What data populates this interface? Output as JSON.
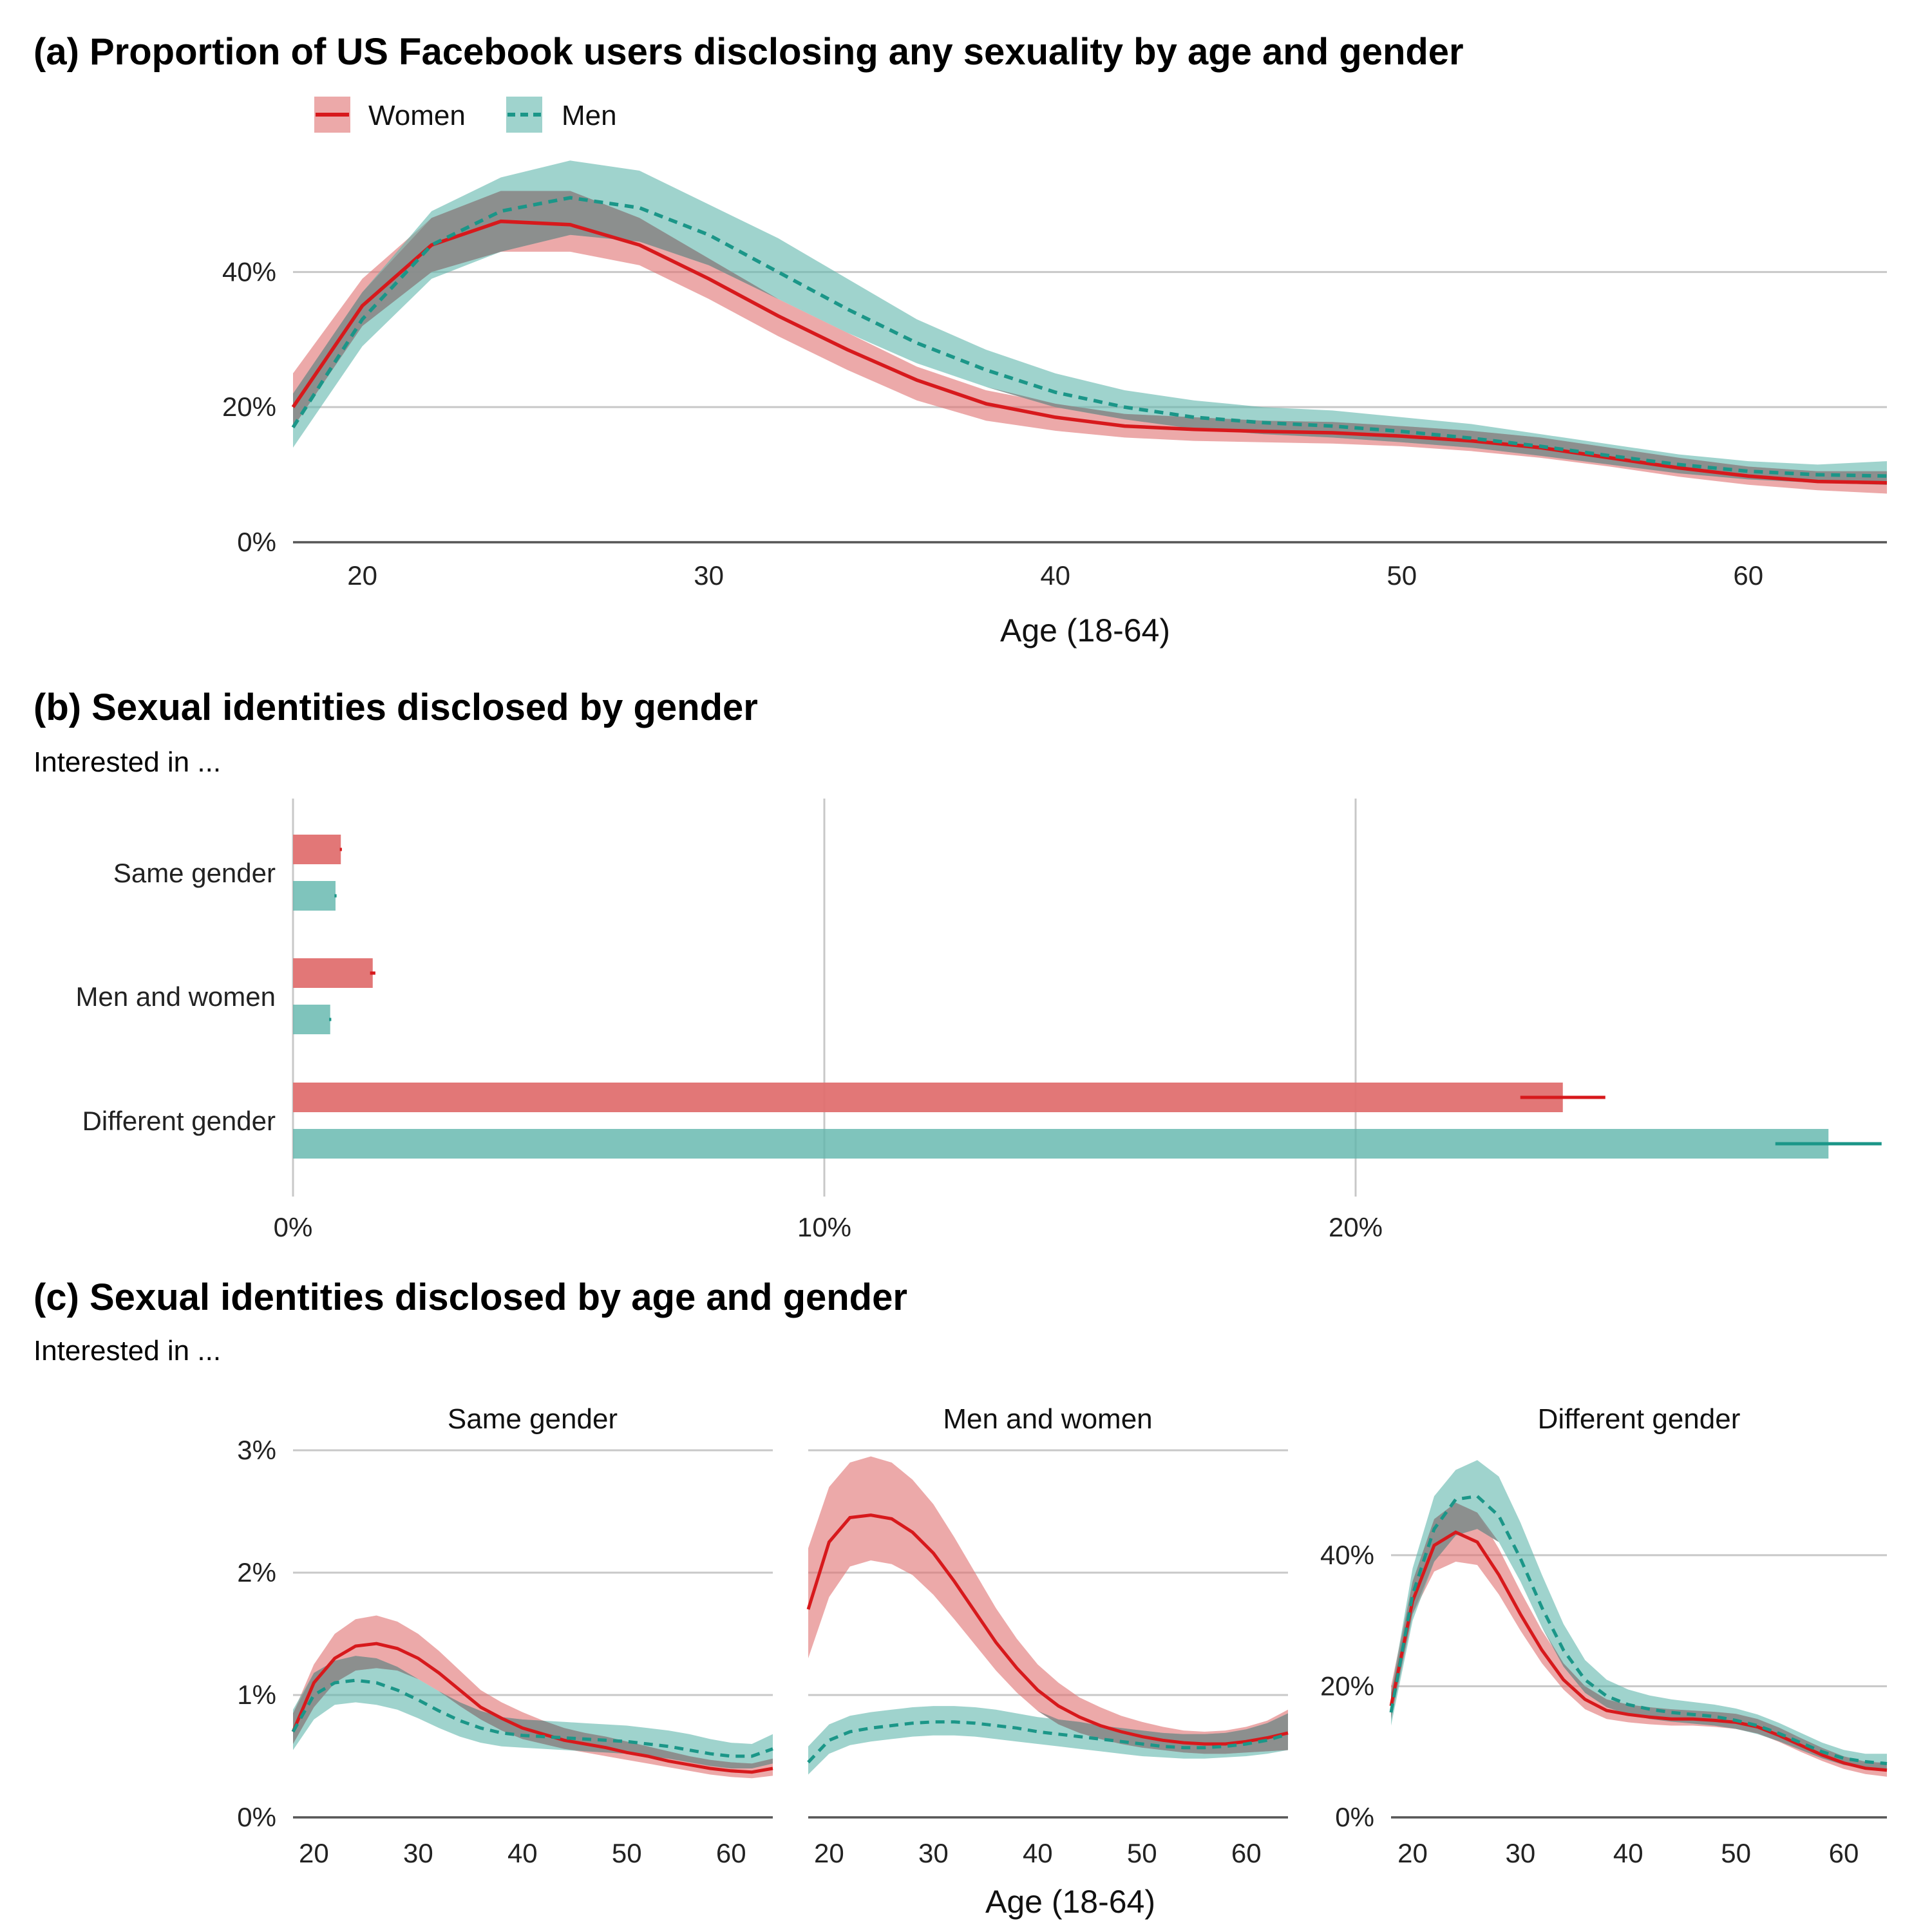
{
  "colors": {
    "women": "#d7191c",
    "men": "#1b9688",
    "women_band": "#e07070",
    "men_band": "#5fb5ab",
    "overlap": "#8a8a8a",
    "grid": "#c8c8c8"
  },
  "legend": {
    "women": "Women",
    "men": "Men"
  },
  "chart_data": [
    {
      "panel": "a",
      "type": "line",
      "title": "(a) Proportion of US Facebook users disclosing any sexuality by age and gender",
      "xlabel": "Age (18-64)",
      "ylabel": "",
      "xlim": [
        18,
        64
      ],
      "ylim": [
        0,
        0.55
      ],
      "xticks": [
        20,
        30,
        40,
        50,
        60
      ],
      "xtick_labels": [
        "20",
        "30",
        "40",
        "50",
        "60"
      ],
      "yticks": [
        0,
        0.2,
        0.4
      ],
      "ytick_labels": [
        "0%",
        "20%",
        "40%"
      ],
      "x": [
        18,
        20,
        22,
        24,
        26,
        28,
        30,
        32,
        34,
        36,
        38,
        40,
        42,
        44,
        46,
        48,
        50,
        52,
        54,
        56,
        58,
        60,
        62,
        64
      ],
      "series": [
        {
          "name": "Women",
          "values": [
            0.2,
            0.35,
            0.44,
            0.475,
            0.47,
            0.44,
            0.39,
            0.335,
            0.285,
            0.24,
            0.205,
            0.185,
            0.172,
            0.167,
            0.164,
            0.162,
            0.157,
            0.15,
            0.14,
            0.125,
            0.11,
            0.098,
            0.09,
            0.088
          ],
          "lower": [
            0.17,
            0.32,
            0.4,
            0.43,
            0.43,
            0.41,
            0.36,
            0.305,
            0.255,
            0.21,
            0.18,
            0.165,
            0.155,
            0.15,
            0.148,
            0.146,
            0.142,
            0.135,
            0.125,
            0.112,
            0.097,
            0.085,
            0.077,
            0.072
          ],
          "upper": [
            0.25,
            0.39,
            0.48,
            0.52,
            0.52,
            0.48,
            0.42,
            0.36,
            0.31,
            0.26,
            0.225,
            0.205,
            0.19,
            0.185,
            0.18,
            0.178,
            0.172,
            0.165,
            0.155,
            0.14,
            0.125,
            0.112,
            0.105,
            0.105
          ]
        },
        {
          "name": "Men",
          "values": [
            0.17,
            0.33,
            0.44,
            0.49,
            0.51,
            0.495,
            0.455,
            0.4,
            0.345,
            0.295,
            0.255,
            0.222,
            0.2,
            0.185,
            0.177,
            0.172,
            0.164,
            0.154,
            0.142,
            0.128,
            0.115,
            0.105,
            0.1,
            0.098
          ],
          "lower": [
            0.14,
            0.29,
            0.39,
            0.43,
            0.455,
            0.445,
            0.41,
            0.36,
            0.31,
            0.265,
            0.23,
            0.2,
            0.182,
            0.168,
            0.16,
            0.155,
            0.148,
            0.14,
            0.128,
            0.115,
            0.102,
            0.093,
            0.088,
            0.085
          ],
          "upper": [
            0.22,
            0.37,
            0.49,
            0.54,
            0.565,
            0.55,
            0.5,
            0.45,
            0.39,
            0.33,
            0.285,
            0.25,
            0.225,
            0.21,
            0.2,
            0.195,
            0.185,
            0.175,
            0.16,
            0.145,
            0.13,
            0.12,
            0.115,
            0.12
          ]
        }
      ]
    },
    {
      "panel": "b",
      "type": "bar",
      "orientation": "horizontal",
      "title": "(b) Sexual identities disclosed by gender",
      "subtitle": "Interested in ...",
      "categories": [
        "Same gender",
        "Men and women",
        "Different gender"
      ],
      "xlim": [
        0,
        0.3
      ],
      "xticks": [
        0,
        0.1,
        0.2
      ],
      "xtick_labels": [
        "0%",
        "10%",
        "20%"
      ],
      "series": [
        {
          "name": "Women",
          "values": [
            0.009,
            0.015,
            0.239
          ],
          "err_low": [
            0.0088,
            0.0145,
            0.231
          ],
          "err_high": [
            0.0092,
            0.0155,
            0.247
          ]
        },
        {
          "name": "Men",
          "values": [
            0.008,
            0.007,
            0.289
          ],
          "err_low": [
            0.0078,
            0.0068,
            0.279
          ],
          "err_high": [
            0.0082,
            0.0072,
            0.299
          ]
        }
      ]
    },
    {
      "panel": "c",
      "type": "line",
      "title": "(c) Sexual identities disclosed by age and gender",
      "subtitle": "Interested in ...",
      "xlabel": "Age (18-64)",
      "xlim": [
        18,
        64
      ],
      "xticks": [
        20,
        30,
        40,
        50,
        60
      ],
      "xtick_labels": [
        "20",
        "30",
        "40",
        "50",
        "60"
      ],
      "x": [
        18,
        20,
        22,
        24,
        26,
        28,
        30,
        32,
        34,
        36,
        38,
        40,
        42,
        44,
        46,
        48,
        50,
        52,
        54,
        56,
        58,
        60,
        62,
        64
      ],
      "facets": [
        {
          "label": "Same gender",
          "ylim": [
            0,
            0.03
          ],
          "yticks": [
            0,
            0.01,
            0.02,
            0.03
          ],
          "ytick_labels": [
            "0%",
            "1%",
            "2%",
            "3%"
          ],
          "series": [
            {
              "name": "Women",
              "values": [
                0.007,
                0.011,
                0.013,
                0.014,
                0.0142,
                0.0138,
                0.013,
                0.0118,
                0.0104,
                0.009,
                0.0081,
                0.0073,
                0.0068,
                0.0063,
                0.006,
                0.0057,
                0.0053,
                0.005,
                0.0046,
                0.0043,
                0.004,
                0.0038,
                0.0037,
                0.004
              ],
              "lower": [
                0.006,
                0.009,
                0.011,
                0.012,
                0.0122,
                0.012,
                0.0113,
                0.0103,
                0.0091,
                0.008,
                0.0071,
                0.0064,
                0.006,
                0.0056,
                0.0053,
                0.005,
                0.0047,
                0.0044,
                0.0041,
                0.0038,
                0.0035,
                0.0033,
                0.0032,
                0.0034
              ],
              "upper": [
                0.0085,
                0.0125,
                0.015,
                0.0162,
                0.0165,
                0.016,
                0.015,
                0.0136,
                0.012,
                0.0104,
                0.0094,
                0.0086,
                0.0079,
                0.0073,
                0.0069,
                0.0066,
                0.0062,
                0.0058,
                0.0054,
                0.005,
                0.0047,
                0.0045,
                0.0044,
                0.0048
              ]
            },
            {
              "name": "Men",
              "values": [
                0.007,
                0.01,
                0.011,
                0.0112,
                0.011,
                0.0104,
                0.0096,
                0.0087,
                0.0079,
                0.0073,
                0.0069,
                0.0067,
                0.0066,
                0.0065,
                0.0064,
                0.0063,
                0.0062,
                0.006,
                0.0058,
                0.0055,
                0.0052,
                0.005,
                0.005,
                0.0056
              ],
              "lower": [
                0.0055,
                0.008,
                0.0092,
                0.0094,
                0.0092,
                0.0088,
                0.0081,
                0.0073,
                0.0066,
                0.0061,
                0.0058,
                0.0057,
                0.0056,
                0.0055,
                0.0054,
                0.0053,
                0.0052,
                0.005,
                0.0048,
                0.0045,
                0.0042,
                0.004,
                0.004,
                0.0044
              ],
              "upper": [
                0.0088,
                0.0118,
                0.0128,
                0.0132,
                0.013,
                0.0123,
                0.0113,
                0.0103,
                0.0094,
                0.0087,
                0.0082,
                0.008,
                0.0079,
                0.0078,
                0.0077,
                0.0076,
                0.0075,
                0.0073,
                0.0071,
                0.0068,
                0.0064,
                0.0061,
                0.006,
                0.0068
              ]
            }
          ]
        },
        {
          "label": "Men and women",
          "ylim": [
            0,
            0.03
          ],
          "yticks": [
            0,
            0.01,
            0.02,
            0.03
          ],
          "ytick_labels": [
            "0%",
            "1%",
            "2%",
            "3%"
          ],
          "series": [
            {
              "name": "Women",
              "values": [
                0.017,
                0.0225,
                0.0245,
                0.0247,
                0.0244,
                0.0233,
                0.0216,
                0.0193,
                0.0168,
                0.0143,
                0.0122,
                0.0104,
                0.0091,
                0.0082,
                0.0075,
                0.007,
                0.0066,
                0.0063,
                0.0061,
                0.006,
                0.006,
                0.0062,
                0.0065,
                0.0069
              ],
              "lower": [
                0.013,
                0.018,
                0.0205,
                0.021,
                0.0207,
                0.0198,
                0.0182,
                0.0162,
                0.0141,
                0.012,
                0.0102,
                0.0087,
                0.0076,
                0.0069,
                0.0064,
                0.006,
                0.0057,
                0.0055,
                0.0053,
                0.0052,
                0.0052,
                0.0053,
                0.0054,
                0.0055
              ],
              "upper": [
                0.022,
                0.027,
                0.029,
                0.0295,
                0.029,
                0.0276,
                0.0256,
                0.0229,
                0.02,
                0.0171,
                0.0146,
                0.0125,
                0.011,
                0.0098,
                0.009,
                0.0083,
                0.0078,
                0.0074,
                0.0071,
                0.007,
                0.0071,
                0.0074,
                0.0079,
                0.0088
              ]
            },
            {
              "name": "Men",
              "values": [
                0.0045,
                0.0063,
                0.007,
                0.0073,
                0.0075,
                0.0077,
                0.0078,
                0.0078,
                0.0077,
                0.0075,
                0.0073,
                0.007,
                0.0068,
                0.0066,
                0.0064,
                0.0062,
                0.006,
                0.0058,
                0.0057,
                0.0057,
                0.0058,
                0.006,
                0.0063,
                0.0068
              ],
              "lower": [
                0.0035,
                0.0052,
                0.0059,
                0.0062,
                0.0064,
                0.0066,
                0.0067,
                0.0067,
                0.0066,
                0.0064,
                0.0062,
                0.006,
                0.0058,
                0.0056,
                0.0054,
                0.0052,
                0.005,
                0.0049,
                0.0048,
                0.0048,
                0.0049,
                0.005,
                0.0052,
                0.0055
              ],
              "upper": [
                0.0058,
                0.0076,
                0.0083,
                0.0086,
                0.0088,
                0.009,
                0.0091,
                0.0091,
                0.009,
                0.0088,
                0.0085,
                0.0082,
                0.008,
                0.0078,
                0.0075,
                0.0073,
                0.0071,
                0.0069,
                0.0068,
                0.0068,
                0.0069,
                0.0072,
                0.0077,
                0.0085
              ]
            }
          ]
        },
        {
          "label": "Different gender",
          "ylim": [
            0,
            0.56
          ],
          "yticks": [
            0,
            0.2,
            0.4
          ],
          "ytick_labels": [
            "0%",
            "20%",
            "40%"
          ],
          "series": [
            {
              "name": "Women",
              "values": [
                0.17,
                0.33,
                0.415,
                0.435,
                0.42,
                0.37,
                0.31,
                0.255,
                0.21,
                0.18,
                0.163,
                0.157,
                0.153,
                0.15,
                0.15,
                0.148,
                0.145,
                0.138,
                0.125,
                0.11,
                0.095,
                0.083,
                0.075,
                0.072
              ],
              "lower": [
                0.15,
                0.31,
                0.375,
                0.39,
                0.385,
                0.34,
                0.285,
                0.235,
                0.195,
                0.165,
                0.15,
                0.145,
                0.142,
                0.14,
                0.14,
                0.138,
                0.135,
                0.128,
                0.115,
                0.1,
                0.086,
                0.074,
                0.066,
                0.062
              ],
              "upper": [
                0.2,
                0.36,
                0.455,
                0.48,
                0.465,
                0.41,
                0.345,
                0.285,
                0.235,
                0.2,
                0.18,
                0.172,
                0.168,
                0.165,
                0.163,
                0.161,
                0.158,
                0.15,
                0.137,
                0.121,
                0.106,
                0.093,
                0.085,
                0.083
              ]
            },
            {
              "name": "Men",
              "values": [
                0.16,
                0.34,
                0.44,
                0.485,
                0.49,
                0.46,
                0.395,
                0.32,
                0.255,
                0.21,
                0.185,
                0.172,
                0.165,
                0.16,
                0.157,
                0.154,
                0.148,
                0.14,
                0.128,
                0.114,
                0.1,
                0.09,
                0.085,
                0.082
              ],
              "lower": [
                0.14,
                0.3,
                0.39,
                0.43,
                0.44,
                0.42,
                0.36,
                0.29,
                0.23,
                0.19,
                0.168,
                0.157,
                0.15,
                0.146,
                0.143,
                0.14,
                0.135,
                0.127,
                0.116,
                0.103,
                0.09,
                0.08,
                0.075,
                0.072
              ],
              "upper": [
                0.19,
                0.38,
                0.49,
                0.53,
                0.545,
                0.52,
                0.45,
                0.37,
                0.295,
                0.24,
                0.21,
                0.195,
                0.186,
                0.18,
                0.176,
                0.172,
                0.166,
                0.157,
                0.144,
                0.129,
                0.114,
                0.103,
                0.097,
                0.097
              ]
            }
          ]
        }
      ]
    }
  ]
}
